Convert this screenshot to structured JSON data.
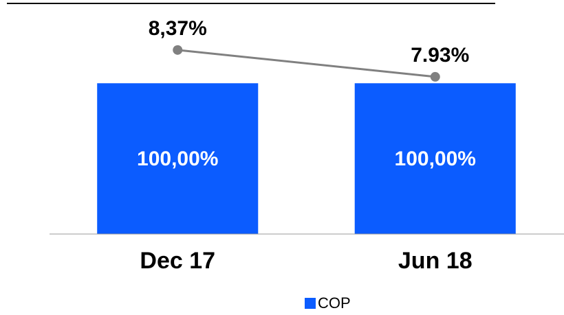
{
  "chart_data": {
    "type": "bar",
    "categories": [
      "Dec 17",
      "Jun 18"
    ],
    "series": [
      {
        "name": "COP",
        "type": "bar",
        "color": "#0b5cff",
        "values": [
          100,
          100
        ],
        "value_labels": [
          "100,00%",
          "100,00%"
        ]
      },
      {
        "type": "line",
        "axis": "y2",
        "color": "#808080",
        "values": [
          8.37,
          7.93
        ],
        "value_labels": [
          "8,37%",
          "7.93%"
        ]
      }
    ],
    "ylim": [
      0,
      137
    ],
    "y2lim": [
      5.35,
      8.74
    ],
    "legend": "bottom"
  }
}
